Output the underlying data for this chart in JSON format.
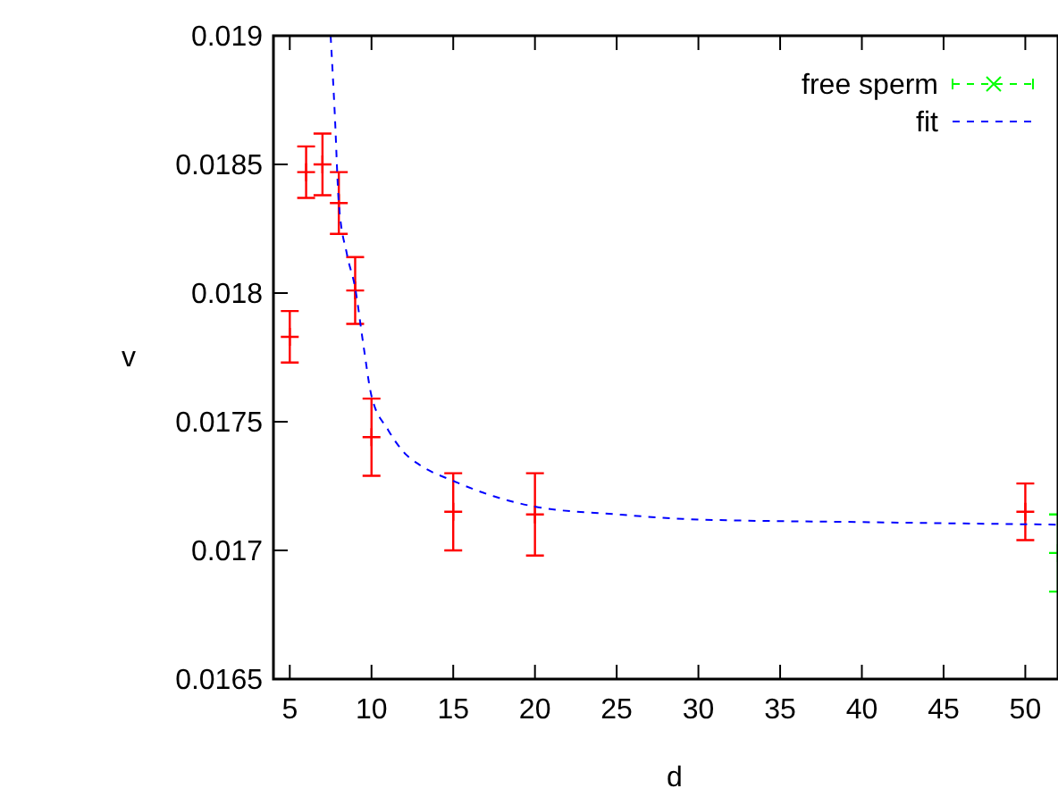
{
  "chart_data": {
    "type": "scatter",
    "xlabel": "d",
    "ylabel": "v",
    "xlim": [
      4,
      52
    ],
    "xticks": [
      5,
      10,
      15,
      20,
      25,
      30,
      35,
      40,
      45,
      50
    ],
    "ylim": [
      0.0165,
      0.019
    ],
    "yticks": [
      0.0165,
      0.017,
      0.0175,
      0.018,
      0.0185,
      0.019
    ],
    "legend": "top right",
    "grid": false,
    "series": [
      {
        "color": "#ff0000",
        "marker": "cross",
        "x": [
          5,
          6,
          7,
          8,
          9,
          10,
          15,
          20,
          50
        ],
        "values": [
          0.01783,
          0.01847,
          0.0185,
          0.01835,
          0.01801,
          0.01744,
          0.01715,
          0.01714,
          0.01715
        ],
        "errors": [
          0.0001,
          0.0001,
          0.00012,
          0.00012,
          0.00013,
          0.00015,
          0.00015,
          0.00016,
          0.00011
        ]
      },
      {
        "name": "free sperm",
        "color": "#00ff00",
        "marker": "cross",
        "line_style": "dashed",
        "x": [
          52
        ],
        "values": [
          0.01699
        ],
        "errors": [
          0.00015
        ]
      },
      {
        "type": "line",
        "name": "fit",
        "color": "#0000ff",
        "line_style": "dashed",
        "x": [
          7.5,
          7.75,
          8,
          8.5,
          9,
          9.5,
          10,
          11,
          12,
          13,
          15,
          17.5,
          20,
          25,
          30,
          40,
          52
        ],
        "values": [
          0.019,
          0.0187,
          0.01835,
          0.01815,
          0.01802,
          0.0178,
          0.0176,
          0.01747,
          0.01738,
          0.01733,
          0.01727,
          0.01721,
          0.01717,
          0.01714,
          0.01712,
          0.01711,
          0.0171
        ]
      }
    ]
  }
}
